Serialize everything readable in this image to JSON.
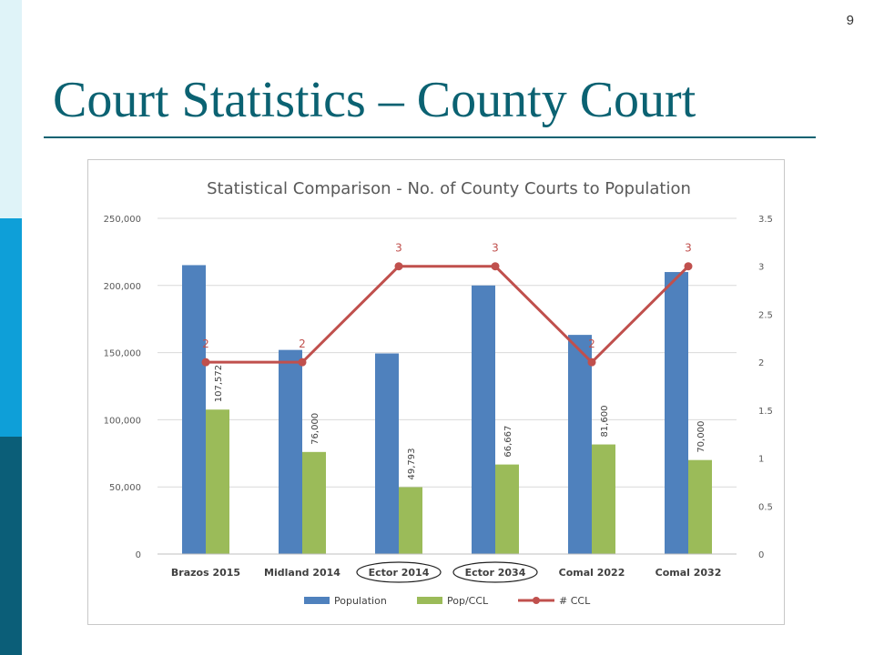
{
  "slide": {
    "page_number": "9",
    "title": "Court Statistics – County Court"
  },
  "colors": {
    "population": "#4f81bd",
    "pop_ccl": "#9bbb59",
    "ccl_line": "#c0504d",
    "brand_teal": "#0b6272"
  },
  "chart_data": {
    "type": "bar",
    "title": "Statistical Comparison - No. of County Courts to Population",
    "categories": [
      "Brazos 2015",
      "Midland 2014",
      "Ector 2014",
      "Ector 2034",
      "Comal 2022",
      "Comal 2032"
    ],
    "circled_categories": [
      "Ector 2014",
      "Ector 2034"
    ],
    "series": [
      {
        "name": "Population",
        "type": "bar",
        "axis": "left",
        "values": [
          215144,
          152000,
          149379,
          200000,
          163200,
          210000
        ]
      },
      {
        "name": "Pop/CCL",
        "type": "bar",
        "axis": "left",
        "values": [
          107572,
          76000,
          49793,
          66667,
          81600,
          70000
        ],
        "labels": [
          "107,572",
          "76,000",
          "49,793",
          "66,667",
          "81,600",
          "70,000"
        ]
      },
      {
        "name": "# CCL",
        "type": "line",
        "axis": "right",
        "values": [
          2,
          2,
          3,
          3,
          2,
          3
        ],
        "labels": [
          "2",
          "2",
          "3",
          "3",
          "2",
          "3"
        ]
      }
    ],
    "y_left": {
      "min": 0,
      "max": 250000,
      "ticks": [
        "0",
        "50,000",
        "100,000",
        "150,000",
        "200,000",
        "250,000"
      ]
    },
    "y_right": {
      "min": 0,
      "max": 3.5,
      "ticks": [
        "0",
        "0.5",
        "1",
        "1.5",
        "2",
        "2.5",
        "3",
        "3.5"
      ]
    },
    "grid": true,
    "legend": {
      "position": "bottom",
      "entries": [
        "Population",
        "Pop/CCL",
        "# CCL"
      ]
    }
  }
}
